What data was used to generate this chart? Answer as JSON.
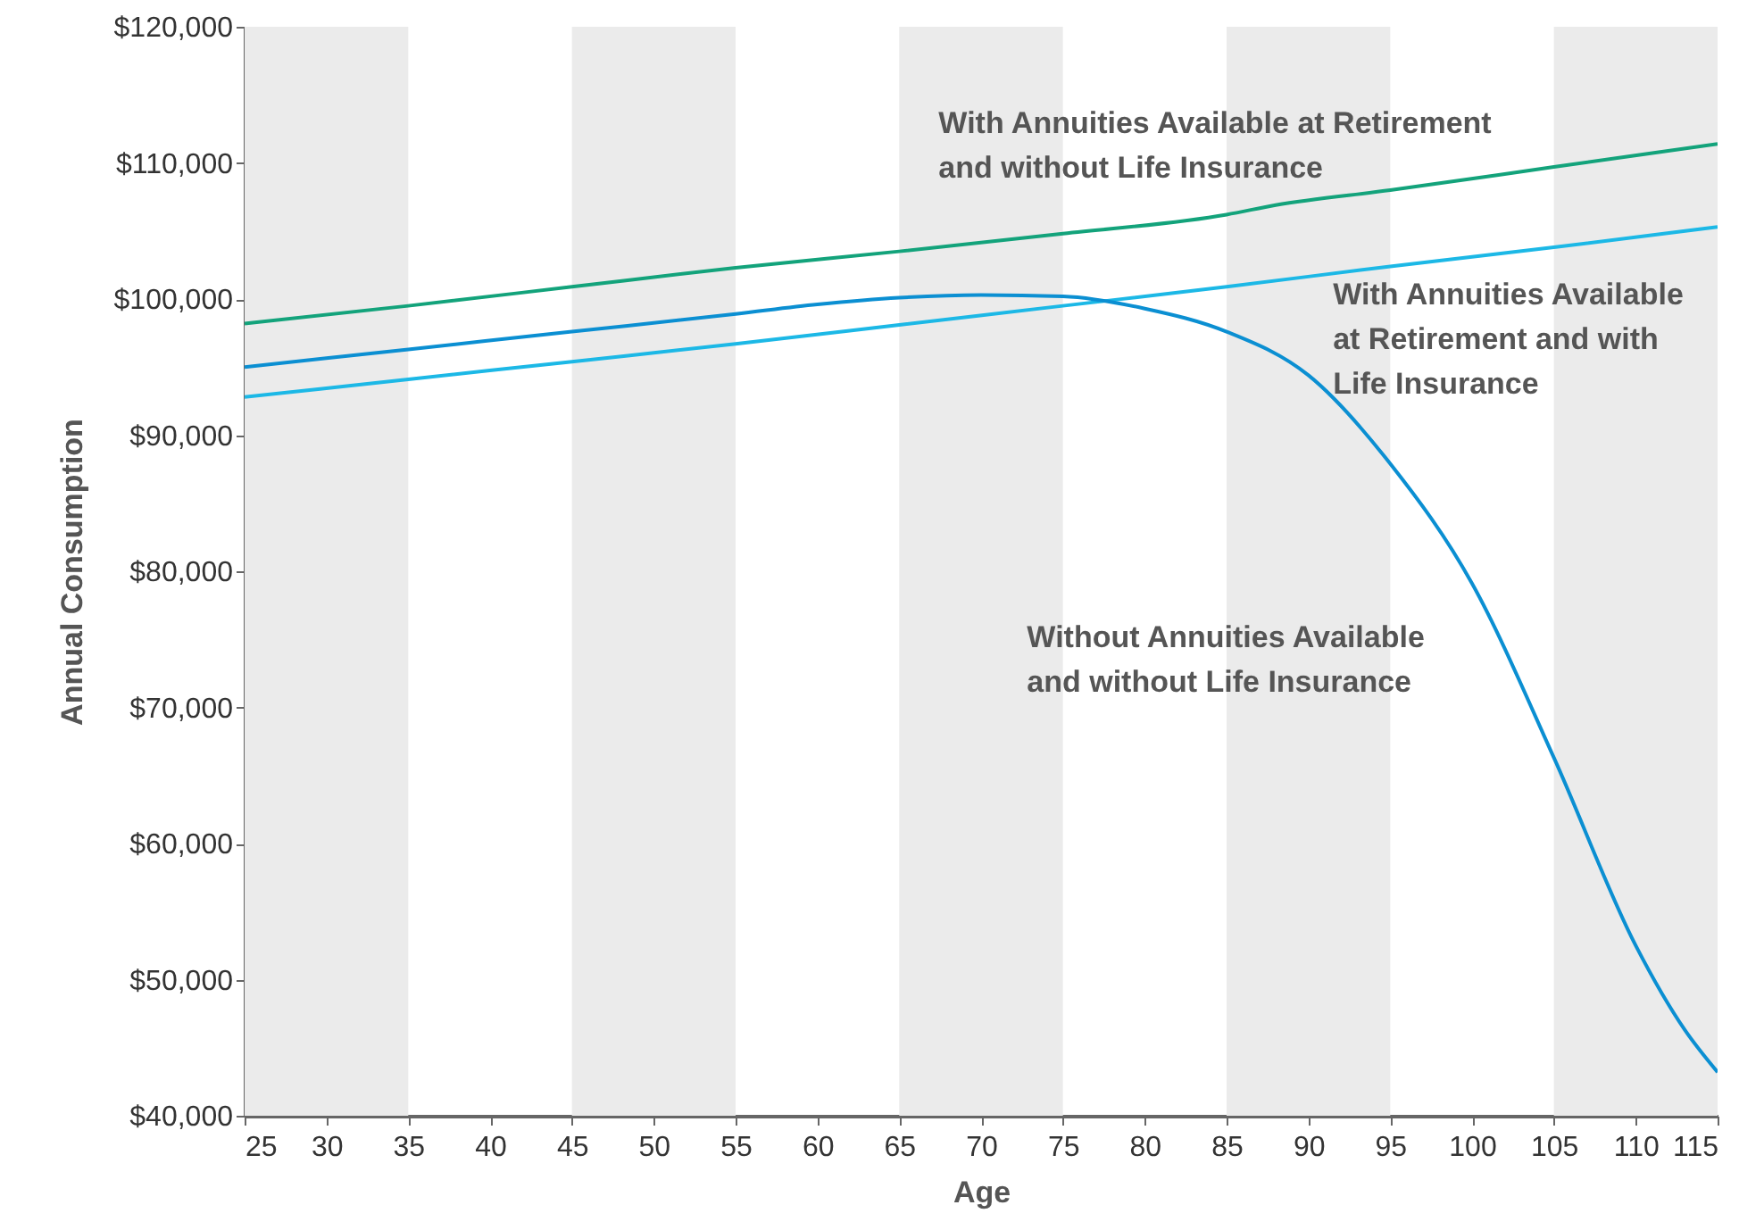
{
  "chart_data": {
    "type": "line",
    "xlabel": "Age",
    "ylabel": "Annual Consumption",
    "xlim": [
      25,
      115
    ],
    "xticks": [
      25,
      30,
      35,
      40,
      45,
      50,
      55,
      60,
      65,
      70,
      75,
      80,
      85,
      90,
      95,
      100,
      105,
      110,
      115
    ],
    "ylim": [
      40000,
      120000
    ],
    "yticks": [
      {
        "value": 40000,
        "label": "$40,000"
      },
      {
        "value": 50000,
        "label": "$50,000"
      },
      {
        "value": 60000,
        "label": "$60,000"
      },
      {
        "value": 70000,
        "label": "$70,000"
      },
      {
        "value": 80000,
        "label": "$80,000"
      },
      {
        "value": 90000,
        "label": "$90,000"
      },
      {
        "value": 100000,
        "label": "$100,000"
      },
      {
        "value": 110000,
        "label": "$110,000"
      },
      {
        "value": 120000,
        "label": "$120,000"
      }
    ],
    "grid": false,
    "legend": false,
    "bands": [
      {
        "axis": "x",
        "from": 25,
        "to": 35,
        "color": "#ebebeb"
      },
      {
        "axis": "x",
        "from": 45,
        "to": 55,
        "color": "#ebebeb"
      },
      {
        "axis": "x",
        "from": 65,
        "to": 75,
        "color": "#ebebeb"
      },
      {
        "axis": "x",
        "from": 85,
        "to": 95,
        "color": "#ebebeb"
      },
      {
        "axis": "x",
        "from": 105,
        "to": 115,
        "color": "#ebebeb"
      }
    ],
    "series": [
      {
        "name": "With Annuities Available at Retirement and without Life Insurance",
        "color": "#13a37b",
        "x": [
          25,
          35,
          45,
          55,
          65,
          75,
          85,
          88,
          95,
          105,
          115
        ],
        "values": [
          98200,
          99500,
          100900,
          102300,
          103500,
          104800,
          106200,
          106900,
          108000,
          109700,
          111400
        ]
      },
      {
        "name": "With Annuities Available at Retirement and with Life Insurance",
        "color": "#1cb8e6",
        "x": [
          25,
          35,
          45,
          55,
          65,
          75,
          85,
          95,
          105,
          115
        ],
        "values": [
          92800,
          94100,
          95400,
          96700,
          98100,
          99500,
          100900,
          102400,
          103800,
          105300
        ]
      },
      {
        "name": "Without Annuities Available and without Life Insurance",
        "color": "#0b8fd2",
        "x": [
          25,
          35,
          45,
          55,
          60,
          65,
          70,
          75,
          80,
          85,
          90,
          95,
          100,
          105,
          110,
          113,
          115
        ],
        "values": [
          95000,
          96300,
          97600,
          98900,
          99600,
          100100,
          100300,
          100200,
          99300,
          97600,
          94400,
          87900,
          79100,
          66300,
          52500,
          46300,
          43200
        ]
      }
    ]
  }
}
